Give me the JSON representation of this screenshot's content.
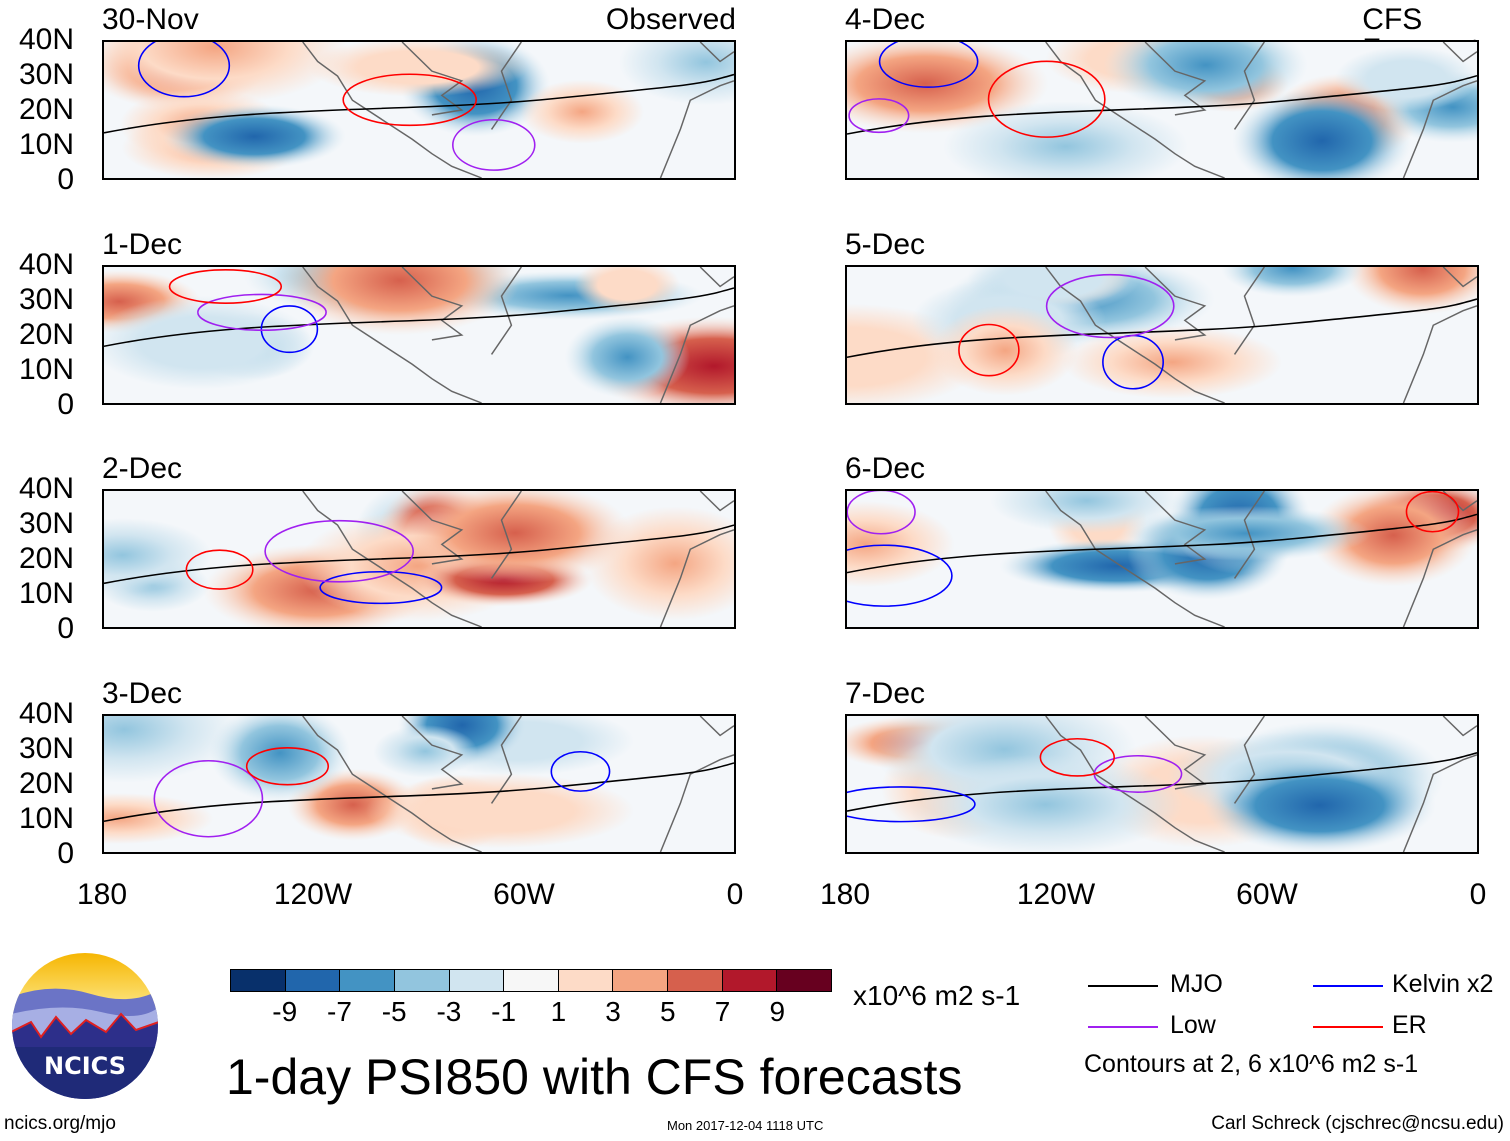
{
  "panels": [
    {
      "date": "30-Nov",
      "tag": "Observed",
      "column": "left"
    },
    {
      "date": "1-Dec",
      "column": "left"
    },
    {
      "date": "2-Dec",
      "column": "left"
    },
    {
      "date": "3-Dec",
      "column": "left"
    },
    {
      "date": "4-Dec",
      "tag": "CFS Forecast",
      "column": "right"
    },
    {
      "date": "5-Dec",
      "column": "right"
    },
    {
      "date": "6-Dec",
      "column": "right"
    },
    {
      "date": "7-Dec",
      "column": "right"
    }
  ],
  "lat_labels": [
    "40N",
    "30N",
    "20N",
    "10N",
    "0"
  ],
  "lon_labels": [
    "180",
    "120W",
    "60W",
    "0"
  ],
  "colorbar": {
    "colors": [
      "#08306b",
      "#2166ac",
      "#4393c3",
      "#92c5de",
      "#d1e5f0",
      "#f7f7f7",
      "#fddbc7",
      "#f4a582",
      "#d6604d",
      "#b2182b",
      "#67001f"
    ],
    "labels": [
      "-9",
      "-7",
      "-5",
      "-3",
      "-1",
      "1",
      "3",
      "5",
      "7",
      "9"
    ],
    "units": "x10^6 m2 s-1"
  },
  "legend": {
    "items": [
      {
        "label": "MJO",
        "color": "#000000"
      },
      {
        "label": "Kelvin x2",
        "color": "#0000ff"
      },
      {
        "label": "Low",
        "color": "#a020f0"
      },
      {
        "label": "ER",
        "color": "#ff0000"
      }
    ],
    "contours_note": "Contours at 2, 6 x10^6 m2 s-1"
  },
  "title": "1-day PSI850 with CFS forecasts",
  "timestamp": "Mon 2017-12-04 1118 UTC",
  "footer": {
    "left": "ncics.org/mjo",
    "right": "Carl Schreck (cjschrec@ncsu.edu)"
  },
  "logo": {
    "text": "NCICS"
  }
}
